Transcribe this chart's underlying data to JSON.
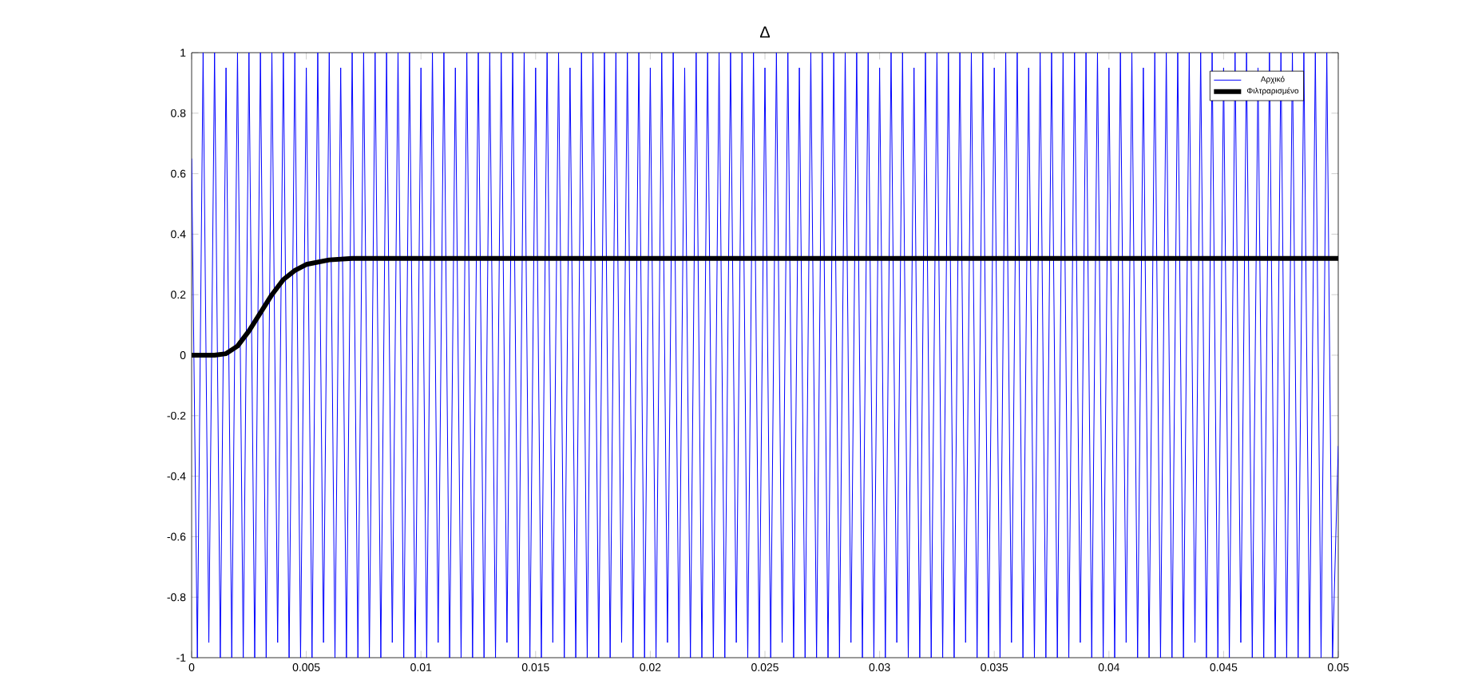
{
  "chart_data": {
    "type": "line",
    "title": "Δ",
    "xlim": [
      0,
      0.05
    ],
    "ylim": [
      -1,
      1
    ],
    "xticks": [
      0,
      0.005,
      0.01,
      0.015,
      0.02,
      0.025,
      0.03,
      0.035,
      0.04,
      0.045,
      0.05
    ],
    "yticks": [
      -1,
      -0.8,
      -0.6,
      -0.4,
      -0.2,
      0,
      0.2,
      0.4,
      0.6,
      0.8,
      1
    ],
    "legend": "top right",
    "grid": false,
    "marker": "none",
    "line_style": "solid",
    "series": [
      {
        "name": "Αρχικό",
        "color": "#0000ff",
        "x": [
          0,
          0.00025,
          0.0005,
          0.00075,
          0.001,
          0.00125,
          0.0015,
          0.00175,
          0.002,
          0.00225,
          0.0025,
          0.00275,
          0.003,
          0.00325,
          0.0035,
          0.00375,
          0.004,
          0.00425,
          0.0045,
          0.00475,
          0.005,
          0.00525,
          0.0055,
          0.00575,
          0.006,
          0.00625,
          0.0065,
          0.00675,
          0.007,
          0.00725,
          0.0075,
          0.00775,
          0.008,
          0.00825,
          0.0085,
          0.00875,
          0.009,
          0.00925,
          0.0095,
          0.00975,
          0.01,
          0.01025,
          0.0105,
          0.01075,
          0.011,
          0.01125,
          0.0115,
          0.01175,
          0.012,
          0.01225,
          0.0125,
          0.01275,
          0.013,
          0.01325,
          0.0135,
          0.01375,
          0.014,
          0.01425,
          0.0145,
          0.01475,
          0.015,
          0.01525,
          0.0155,
          0.01575,
          0.016,
          0.01625,
          0.0165,
          0.01675,
          0.017,
          0.01725,
          0.0175,
          0.01775,
          0.018,
          0.01825,
          0.0185,
          0.01875,
          0.019,
          0.01925,
          0.0195,
          0.01975,
          0.02,
          0.02025,
          0.0205,
          0.02075,
          0.021,
          0.02125,
          0.0215,
          0.02175,
          0.022,
          0.02225,
          0.0225,
          0.02275,
          0.023,
          0.02325,
          0.0235,
          0.02375,
          0.024,
          0.02425,
          0.0245,
          0.02475,
          0.025,
          0.02525,
          0.0255,
          0.02575,
          0.026,
          0.02625,
          0.0265,
          0.02675,
          0.027,
          0.02725,
          0.0275,
          0.02775,
          0.028,
          0.02825,
          0.0285,
          0.02875,
          0.029,
          0.02925,
          0.0295,
          0.02975,
          0.03,
          0.03025,
          0.0305,
          0.03075,
          0.031,
          0.03125,
          0.0315,
          0.03175,
          0.032,
          0.03225,
          0.0325,
          0.03275,
          0.033,
          0.03325,
          0.0335,
          0.03375,
          0.034,
          0.03425,
          0.0345,
          0.03475,
          0.035,
          0.03525,
          0.0355,
          0.03575,
          0.036,
          0.03625,
          0.0365,
          0.03675,
          0.037,
          0.03725,
          0.0375,
          0.03775,
          0.038,
          0.03825,
          0.0385,
          0.03875,
          0.039,
          0.03925,
          0.0395,
          0.03975,
          0.04,
          0.04025,
          0.0405,
          0.04075,
          0.041,
          0.04125,
          0.0415,
          0.04175,
          0.042,
          0.04225,
          0.0425,
          0.04275,
          0.043,
          0.04325,
          0.0435,
          0.04375,
          0.044,
          0.04425,
          0.0445,
          0.04475,
          0.045,
          0.04525,
          0.0455,
          0.04575,
          0.046,
          0.04625,
          0.0465,
          0.04675,
          0.047,
          0.04725,
          0.0475,
          0.04775,
          0.048,
          0.04825,
          0.0485,
          0.04875,
          0.049,
          0.04925,
          0.0495,
          0.04975,
          0.05
        ],
        "values": [
          0.65,
          -1,
          1,
          -0.95,
          1,
          -1,
          0.95,
          -1,
          1,
          -1,
          1,
          -1,
          1,
          -1,
          1,
          -0.95,
          1,
          -1,
          1,
          -1,
          0.95,
          -1,
          1,
          -0.95,
          1,
          -1,
          0.95,
          -1,
          1,
          -1,
          1,
          -1,
          1,
          -1,
          1,
          -0.95,
          1,
          -1,
          1,
          -1,
          0.95,
          -1,
          1,
          -0.95,
          1,
          -1,
          0.95,
          -1,
          1,
          -1,
          1,
          -1,
          1,
          -1,
          1,
          -0.95,
          1,
          -1,
          1,
          -1,
          0.95,
          -1,
          1,
          -0.95,
          1,
          -1,
          0.95,
          -1,
          1,
          -1,
          1,
          -1,
          1,
          -1,
          1,
          -0.95,
          1,
          -1,
          1,
          -1,
          0.95,
          -1,
          1,
          -0.95,
          1,
          -1,
          0.95,
          -1,
          1,
          -1,
          1,
          -1,
          1,
          -1,
          1,
          -0.95,
          1,
          -1,
          1,
          -1,
          0.95,
          -1,
          1,
          -0.95,
          1,
          -1,
          0.95,
          -1,
          1,
          -1,
          1,
          -1,
          1,
          -1,
          1,
          -0.95,
          1,
          -1,
          1,
          -1,
          0.95,
          -1,
          1,
          -0.95,
          1,
          -1,
          0.95,
          -1,
          1,
          -1,
          1,
          -1,
          1,
          -1,
          1,
          -0.95,
          1,
          -1,
          1,
          -1,
          0.95,
          -1,
          1,
          -0.95,
          1,
          -1,
          0.95,
          -1,
          1,
          -1,
          1,
          -1,
          1,
          -1,
          1,
          -0.95,
          1,
          -1,
          1,
          -1,
          0.95,
          -1,
          1,
          -0.95,
          1,
          -1,
          0.95,
          -1,
          1,
          -1,
          1,
          -1,
          1,
          -1,
          1,
          -0.95,
          1,
          -1,
          1,
          -1,
          0.95,
          -1,
          1,
          -0.95,
          1,
          -1,
          0.95,
          -1,
          1,
          -1,
          1,
          -1,
          1,
          -1,
          1,
          -1,
          1,
          -1,
          1,
          -1,
          -0.3
        ]
      },
      {
        "name": "Φιλτραρισμένο",
        "color": "#000000",
        "x": [
          0,
          0.001,
          0.0015,
          0.002,
          0.0025,
          0.003,
          0.0035,
          0.004,
          0.0045,
          0.005,
          0.006,
          0.007,
          0.05
        ],
        "values": [
          0,
          0,
          0.005,
          0.03,
          0.08,
          0.14,
          0.2,
          0.25,
          0.28,
          0.3,
          0.315,
          0.32,
          0.32
        ]
      }
    ]
  }
}
